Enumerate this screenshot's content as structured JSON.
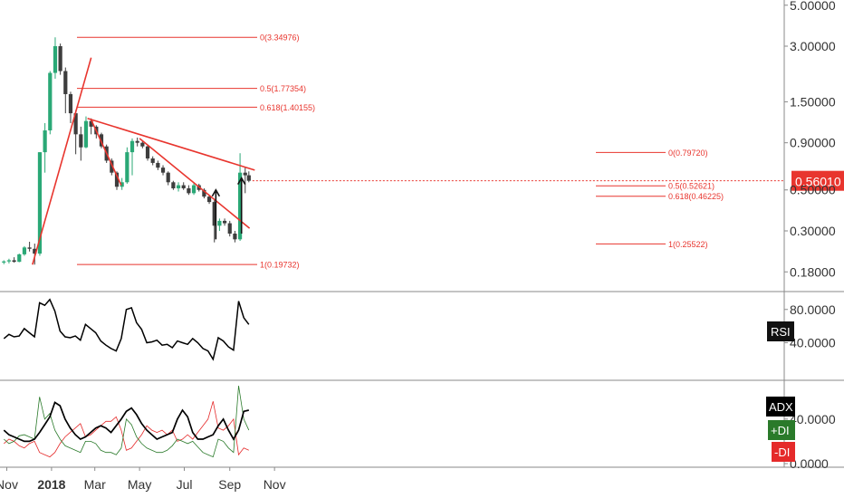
{
  "chart_data": {
    "type": "candlestick",
    "price_panel": {
      "scale": "log",
      "price_ticks": [
        "5.00000",
        "3.00000",
        "1.50000",
        "0.90000",
        "0.50000",
        "0.30000",
        "0.18000"
      ],
      "last_price": {
        "label": "0.56010",
        "value": 0.5601,
        "color": "#e8352e"
      },
      "candles": [
        [
          "2017-10-28",
          0.203,
          0.208,
          0.198,
          0.205
        ],
        [
          "2017-11-04",
          0.205,
          0.212,
          0.2,
          0.208
        ],
        [
          "2017-11-11",
          0.208,
          0.216,
          0.202,
          0.204
        ],
        [
          "2017-11-18",
          0.204,
          0.226,
          0.203,
          0.224
        ],
        [
          "2017-11-25",
          0.224,
          0.248,
          0.22,
          0.244
        ],
        [
          "2017-12-02",
          0.244,
          0.262,
          0.232,
          0.24
        ],
        [
          "2017-12-09",
          0.24,
          0.256,
          0.197,
          0.226
        ],
        [
          "2017-12-16",
          0.226,
          0.8,
          0.22,
          0.8
        ],
        [
          "2017-12-23",
          0.8,
          1.15,
          0.62,
          1.05
        ],
        [
          "2017-12-30",
          1.05,
          2.2,
          1.0,
          2.15
        ],
        [
          "2018-01-06",
          2.15,
          3.35,
          2.0,
          3.0
        ],
        [
          "2018-01-13",
          3.0,
          3.1,
          2.1,
          2.2
        ],
        [
          "2018-01-20",
          2.2,
          2.3,
          1.3,
          1.65
        ],
        [
          "2018-01-27",
          1.65,
          1.7,
          1.15,
          1.3
        ],
        [
          "2018-02-03",
          1.3,
          1.35,
          0.78,
          1.0
        ],
        [
          "2018-02-10",
          1.0,
          1.1,
          0.72,
          0.85
        ],
        [
          "2018-02-17",
          0.85,
          1.25,
          0.84,
          1.18
        ],
        [
          "2018-02-24",
          1.18,
          1.22,
          1.0,
          1.1
        ],
        [
          "2018-03-03",
          1.1,
          1.12,
          0.95,
          1.0
        ],
        [
          "2018-03-10",
          1.0,
          1.02,
          0.84,
          0.86
        ],
        [
          "2018-03-17",
          0.86,
          0.88,
          0.7,
          0.72
        ],
        [
          "2018-03-24",
          0.72,
          0.74,
          0.6,
          0.62
        ],
        [
          "2018-03-31",
          0.62,
          0.63,
          0.5,
          0.52
        ],
        [
          "2018-04-07",
          0.52,
          0.58,
          0.5,
          0.55
        ],
        [
          "2018-04-14",
          0.55,
          0.85,
          0.54,
          0.8
        ],
        [
          "2018-04-21",
          0.8,
          0.95,
          0.6,
          0.92
        ],
        [
          "2018-04-28",
          0.92,
          0.96,
          0.86,
          0.9
        ],
        [
          "2018-05-05",
          0.9,
          0.92,
          0.84,
          0.86
        ],
        [
          "2018-05-12",
          0.86,
          0.87,
          0.72,
          0.74
        ],
        [
          "2018-05-19",
          0.74,
          0.76,
          0.68,
          0.7
        ],
        [
          "2018-05-26",
          0.7,
          0.72,
          0.64,
          0.66
        ],
        [
          "2018-06-02",
          0.66,
          0.68,
          0.6,
          0.62
        ],
        [
          "2018-06-09",
          0.62,
          0.63,
          0.53,
          0.55
        ],
        [
          "2018-06-16",
          0.55,
          0.56,
          0.5,
          0.51
        ],
        [
          "2018-06-23",
          0.51,
          0.55,
          0.49,
          0.53
        ],
        [
          "2018-06-30",
          0.53,
          0.55,
          0.5,
          0.51
        ],
        [
          "2018-07-07",
          0.51,
          0.53,
          0.47,
          0.48
        ],
        [
          "2018-07-14",
          0.48,
          0.55,
          0.47,
          0.53
        ],
        [
          "2018-07-21",
          0.53,
          0.54,
          0.49,
          0.5
        ],
        [
          "2018-07-28",
          0.5,
          0.51,
          0.45,
          0.46
        ],
        [
          "2018-08-04",
          0.46,
          0.47,
          0.42,
          0.43
        ],
        [
          "2018-08-11",
          0.43,
          0.44,
          0.26,
          0.32
        ],
        [
          "2018-08-18",
          0.32,
          0.35,
          0.3,
          0.34
        ],
        [
          "2018-08-25",
          0.34,
          0.35,
          0.32,
          0.33
        ],
        [
          "2018-09-01",
          0.33,
          0.34,
          0.28,
          0.29
        ],
        [
          "2018-09-08",
          0.29,
          0.3,
          0.26,
          0.27
        ],
        [
          "2018-09-15",
          0.27,
          0.79,
          0.265,
          0.62
        ],
        [
          "2018-09-22",
          0.62,
          0.66,
          0.48,
          0.6
        ],
        [
          "2018-09-27",
          0.6,
          0.63,
          0.55,
          0.5601
        ]
      ],
      "fibonacci_sets": [
        {
          "color": "#e8352e",
          "levels": [
            {
              "label": "0(3.34976)",
              "price": 3.34976
            },
            {
              "label": "0.5(1.77354)",
              "price": 1.77354
            },
            {
              "label": "0.618(1.40155)",
              "price": 1.40155
            },
            {
              "label": "1(0.19732)",
              "price": 0.19732
            }
          ]
        },
        {
          "color": "#e8352e",
          "levels": [
            {
              "label": "0(0.79720)",
              "price": 0.7972
            },
            {
              "label": "0.5(0.52621)",
              "price": 0.52621
            },
            {
              "label": "0.618(0.46225)",
              "price": 0.46225
            },
            {
              "label": "1(0.25522)",
              "price": 0.25522
            }
          ]
        }
      ],
      "trend_lines": [
        {
          "from": [
            "2017-12-06",
            0.197
          ],
          "to": [
            "2018-02-24",
            2.6
          ]
        },
        {
          "from": [
            "2018-02-19",
            1.22
          ],
          "to": [
            "2018-10-05",
            0.64
          ]
        },
        {
          "from": [
            "2018-02-24",
            1.2
          ],
          "to": [
            "2018-04-06",
            0.53
          ]
        },
        {
          "from": [
            "2018-05-01",
            0.95
          ],
          "to": [
            "2018-09-28",
            0.31
          ]
        }
      ],
      "arrows": [
        {
          "date": "2018-08-13",
          "from": 0.27,
          "to": 0.5
        },
        {
          "date": "2018-09-17",
          "from": 0.29,
          "to": 0.58
        }
      ]
    },
    "rsi_panel": {
      "label": "RSI",
      "ticks": [
        "80.0000",
        "40.0000"
      ],
      "range": [
        10,
        95
      ],
      "values": [
        45,
        50,
        47,
        48,
        57,
        52,
        47,
        88,
        85,
        92,
        78,
        54,
        47,
        46,
        48,
        43,
        62,
        57,
        52,
        42,
        37,
        33,
        30,
        45,
        80,
        82,
        64,
        56,
        40,
        41,
        43,
        37,
        38,
        34,
        42,
        40,
        38,
        45,
        40,
        33,
        30,
        20,
        46,
        42,
        35,
        31,
        90,
        70,
        62
      ]
    },
    "adx_panel": {
      "ticks": [
        "40.0000",
        "0.0000"
      ],
      "range": [
        0,
        70
      ],
      "adx": {
        "label": "ADX",
        "color": "#000000",
        "values": [
          30,
          26,
          24,
          22,
          20,
          20,
          22,
          28,
          35,
          42,
          55,
          52,
          40,
          32,
          26,
          22,
          24,
          28,
          32,
          34,
          32,
          28,
          34,
          40,
          47,
          50,
          44,
          36,
          30,
          26,
          22,
          24,
          26,
          28,
          40,
          48,
          42,
          28,
          22,
          22,
          24,
          26,
          34,
          40,
          30,
          22,
          30,
          47,
          48
        ]
      },
      "plus_di": {
        "label": "+DI",
        "color": "#2a7a2a",
        "values": [
          22,
          18,
          20,
          25,
          26,
          24,
          22,
          60,
          40,
          45,
          30,
          22,
          16,
          14,
          12,
          10,
          20,
          20,
          18,
          12,
          10,
          10,
          8,
          14,
          40,
          35,
          24,
          18,
          14,
          12,
          10,
          10,
          12,
          16,
          22,
          20,
          18,
          20,
          15,
          10,
          8,
          6,
          22,
          20,
          14,
          10,
          70,
          40,
          30
        ]
      },
      "minus_di": {
        "label": "-DI",
        "color": "#e52a2a",
        "values": [
          18,
          22,
          20,
          16,
          14,
          18,
          20,
          10,
          8,
          6,
          10,
          18,
          24,
          28,
          32,
          36,
          24,
          26,
          30,
          34,
          38,
          38,
          42,
          30,
          12,
          14,
          20,
          26,
          34,
          30,
          28,
          30,
          26,
          30,
          20,
          22,
          26,
          22,
          28,
          34,
          40,
          56,
          32,
          30,
          34,
          40,
          8,
          14,
          12
        ]
      }
    },
    "x_axis": {
      "labels": [
        {
          "text": "Nov",
          "date": "2017-11-01",
          "bold": false
        },
        {
          "text": "2018",
          "date": "2018-01-01",
          "bold": true
        },
        {
          "text": "Mar",
          "date": "2018-03-01",
          "bold": false
        },
        {
          "text": "May",
          "date": "2018-05-01",
          "bold": false
        },
        {
          "text": "Jul",
          "date": "2018-07-01",
          "bold": false
        },
        {
          "text": "Sep",
          "date": "2018-09-01",
          "bold": false
        },
        {
          "text": "Nov",
          "date": "2018-11-01",
          "bold": false
        }
      ]
    },
    "colors": {
      "up": "#2aa876",
      "down": "#3d3d3d",
      "annotations": "#e8352e",
      "rsi_line": "#000000"
    }
  }
}
